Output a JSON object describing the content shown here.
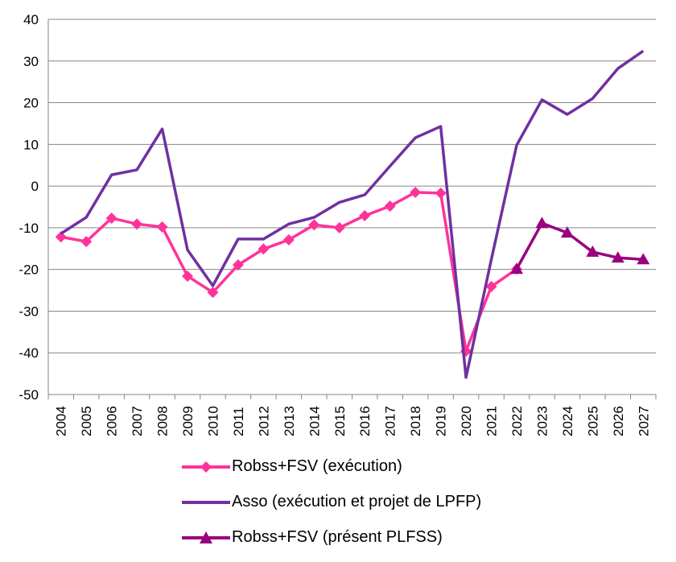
{
  "chart_data": {
    "type": "line",
    "x": [
      2004,
      2005,
      2006,
      2007,
      2008,
      2009,
      2010,
      2011,
      2012,
      2013,
      2014,
      2015,
      2016,
      2017,
      2018,
      2019,
      2020,
      2021,
      2022,
      2023,
      2024,
      2025,
      2026,
      2027
    ],
    "ylim": [
      -50,
      40
    ],
    "yticks": [
      40,
      30,
      20,
      10,
      0,
      -10,
      -20,
      -30,
      -40,
      -50
    ],
    "grid": "horizontal",
    "legend": "bottom",
    "series": [
      {
        "name": "Robss+FSV (exécution)",
        "color": "#FF3399",
        "marker": "diamond",
        "values": [
          -12.2,
          -13.3,
          -7.7,
          -9.1,
          -9.8,
          -21.6,
          -25.5,
          -18.9,
          -15.1,
          -12.9,
          -9.3,
          -10.0,
          -7.1,
          -4.8,
          -1.5,
          -1.7,
          -39.6,
          -24.1,
          -19.9,
          null,
          null,
          null,
          null,
          null
        ]
      },
      {
        "name": "Asso (exécution et projet de LPFP)",
        "color": "#7030A0",
        "marker": "none",
        "values": [
          -11.4,
          -7.5,
          2.7,
          3.9,
          13.7,
          -15.3,
          -23.9,
          -12.7,
          -12.7,
          -9.1,
          -7.5,
          -3.9,
          -2.1,
          4.8,
          11.6,
          14.3,
          -45.9,
          -17.6,
          9.8,
          20.7,
          17.2,
          21.0,
          28.2,
          32.4
        ]
      },
      {
        "name": "Robss+FSV (présent PLFSS)",
        "color": "#990080",
        "marker": "triangle",
        "values": [
          null,
          null,
          null,
          null,
          null,
          null,
          null,
          null,
          null,
          null,
          null,
          null,
          null,
          null,
          null,
          null,
          null,
          null,
          -19.9,
          -8.9,
          -11.2,
          -15.8,
          -17.2,
          -17.6
        ]
      }
    ]
  }
}
